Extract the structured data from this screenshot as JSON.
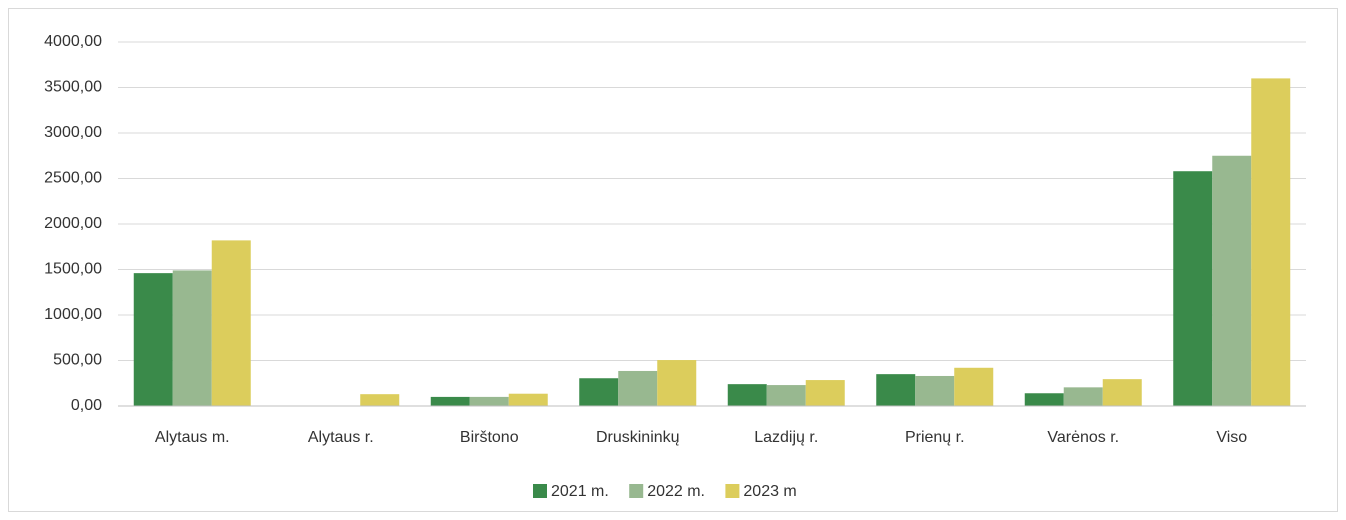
{
  "chart_data": {
    "type": "bar",
    "categories": [
      "Alytaus m.",
      "Alytaus r.",
      "Birštono",
      "Druskininkų",
      "Lazdijų r.",
      "Prienų r.",
      "Varėnos r.",
      "Viso"
    ],
    "series": [
      {
        "name": "2021 m.",
        "color": "#3a8a4a",
        "values": [
          1460,
          0,
          100,
          305,
          240,
          350,
          140,
          2580
        ]
      },
      {
        "name": "2022 m.",
        "color": "#98b890",
        "values": [
          1490,
          0,
          100,
          385,
          230,
          330,
          205,
          2750
        ]
      },
      {
        "name": "2023 m",
        "color": "#dccd5c",
        "values": [
          1820,
          130,
          135,
          505,
          285,
          420,
          295,
          3600
        ]
      }
    ],
    "ylim": [
      0,
      4000
    ],
    "yticks": [
      {
        "value": 0,
        "label": "0,00"
      },
      {
        "value": 500,
        "label": "500,00"
      },
      {
        "value": 1000,
        "label": "1000,00"
      },
      {
        "value": 1500,
        "label": "1500,00"
      },
      {
        "value": 2000,
        "label": "2000,00"
      },
      {
        "value": 2500,
        "label": "2500,00"
      },
      {
        "value": 3000,
        "label": "3000,00"
      },
      {
        "value": 3500,
        "label": "3500,00"
      },
      {
        "value": 4000,
        "label": "4000,00"
      }
    ],
    "grid": true,
    "legend": "bottom"
  }
}
